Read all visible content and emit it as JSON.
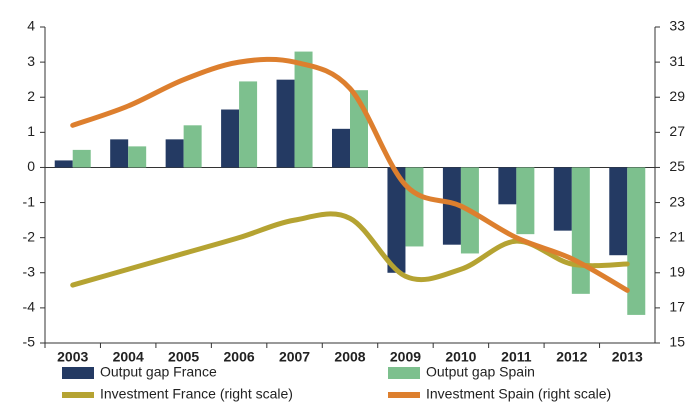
{
  "chart_data": {
    "type": "bar",
    "categories": [
      "2003",
      "2004",
      "2005",
      "2006",
      "2007",
      "2008",
      "2009",
      "2010",
      "2011",
      "2012",
      "2013"
    ],
    "series": [
      {
        "name": "Output gap France",
        "color": "#243a63",
        "values": [
          0.2,
          0.8,
          0.8,
          1.65,
          2.5,
          1.1,
          -3.0,
          -2.2,
          -1.05,
          -1.8,
          -2.5
        ]
      },
      {
        "name": "Output gap Spain",
        "color": "#7dc08e",
        "values": [
          0.5,
          0.6,
          1.2,
          2.45,
          3.3,
          2.2,
          -2.25,
          -2.45,
          -1.9,
          -3.6,
          -4.2
        ]
      },
      {
        "name": "Investment France (right scale)",
        "color": "#b5a332",
        "type": "line",
        "axis": "y2",
        "values": [
          18.3,
          19.2,
          20.1,
          21.0,
          22.0,
          22.1,
          18.8,
          19.2,
          20.8,
          19.5,
          19.5
        ]
      },
      {
        "name": "Investment Spain (right scale)",
        "color": "#dd7f2e",
        "type": "line",
        "axis": "y2",
        "values": [
          27.4,
          28.5,
          30.0,
          31.0,
          31.0,
          29.5,
          24.0,
          22.8,
          21.0,
          19.8,
          18.0
        ]
      }
    ],
    "ylim": [
      -5,
      4
    ],
    "yticks": [
      -5,
      -4,
      -3,
      -2,
      -1,
      0,
      1,
      2,
      3,
      4
    ],
    "y2lim": [
      15,
      33
    ],
    "y2ticks": [
      15,
      17,
      19,
      21,
      23,
      25,
      27,
      29,
      31,
      33
    ],
    "grid": false
  }
}
